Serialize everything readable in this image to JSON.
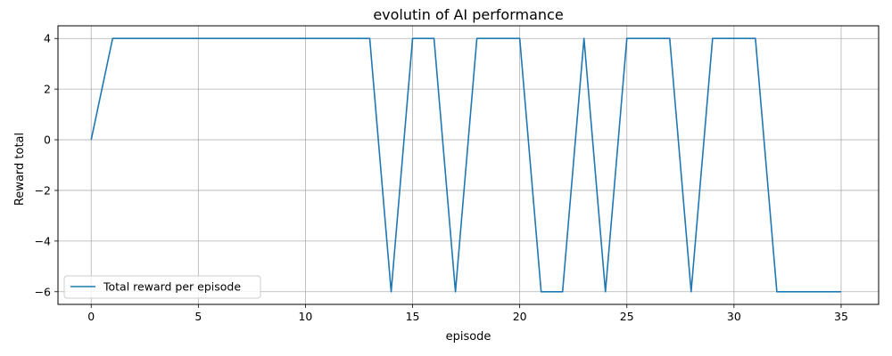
{
  "chart_data": {
    "type": "line",
    "title": "evolutin of AI performance",
    "xlabel": "episode",
    "ylabel": "Reward total",
    "xlim": [
      -1.55,
      36.75
    ],
    "ylim": [
      -6.5,
      4.5
    ],
    "xticks": [
      0,
      5,
      10,
      15,
      20,
      25,
      30,
      35
    ],
    "yticks": [
      -6,
      -4,
      -2,
      0,
      2,
      4
    ],
    "ytick_labels": [
      "−6",
      "−4",
      "−2",
      "0",
      "2",
      "4"
    ],
    "grid": true,
    "legend_position": "lower-left",
    "series": [
      {
        "name": "Total reward per episode",
        "color": "#1f77b4",
        "x": [
          0,
          1,
          2,
          3,
          4,
          5,
          6,
          7,
          8,
          9,
          10,
          11,
          12,
          13,
          14,
          15,
          16,
          17,
          18,
          19,
          20,
          21,
          22,
          23,
          24,
          25,
          26,
          27,
          28,
          29,
          30,
          31,
          32,
          33,
          34,
          35
        ],
        "values": [
          0,
          4,
          4,
          4,
          4,
          4,
          4,
          4,
          4,
          4,
          4,
          4,
          4,
          4,
          -6,
          4,
          4,
          -6,
          4,
          4,
          4,
          -6,
          -6,
          4,
          -6,
          4,
          4,
          4,
          -6,
          4,
          4,
          4,
          -6,
          -6,
          -6,
          -6
        ]
      }
    ]
  }
}
